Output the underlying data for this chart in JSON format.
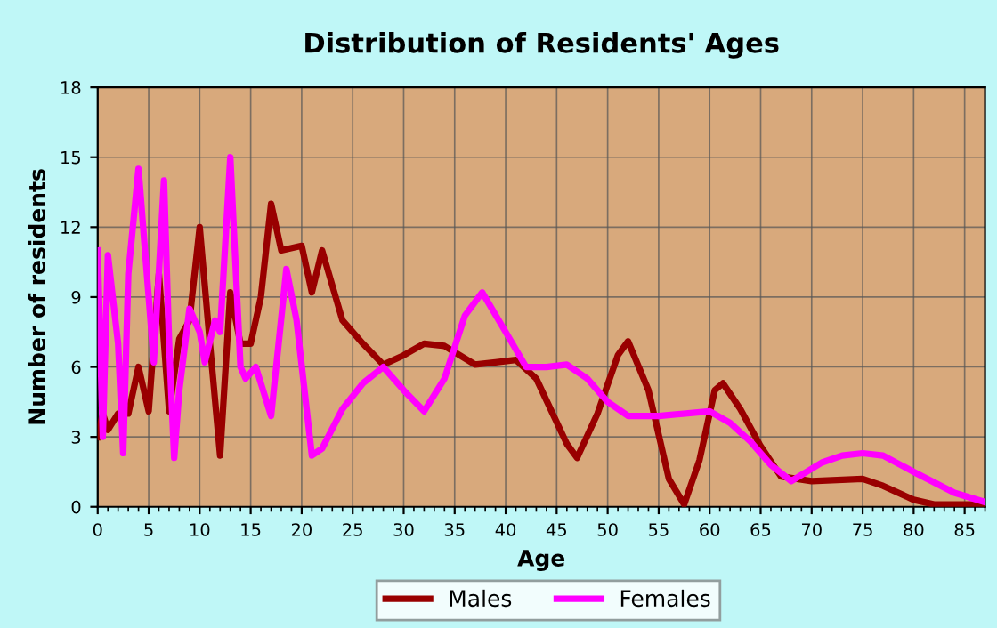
{
  "chart_data": {
    "type": "line",
    "title": "Distribution of Residents' Ages",
    "xlabel": "Age",
    "ylabel": "Number of residents",
    "xlim": [
      0,
      87
    ],
    "ylim": [
      0,
      18
    ],
    "xticks": [
      0,
      5,
      10,
      15,
      20,
      25,
      30,
      35,
      40,
      45,
      50,
      55,
      60,
      65,
      70,
      75,
      80,
      85
    ],
    "yticks": [
      0,
      3,
      6,
      9,
      12,
      15,
      18
    ],
    "grid": true,
    "legend": "bottom",
    "marker": "none",
    "line_style": "solid",
    "series": [
      {
        "name": "Males",
        "color": "#990000",
        "x": [
          0,
          0.5,
          1,
          2,
          3,
          4,
          5,
          6,
          7,
          8,
          9,
          10,
          11,
          12,
          13,
          14,
          15,
          16,
          17,
          18,
          20,
          21,
          22,
          24,
          26,
          28,
          30,
          32,
          34,
          37,
          39,
          41,
          43,
          46,
          47,
          49,
          51,
          52,
          54,
          56,
          57.5,
          59,
          60.5,
          61.3,
          63,
          65,
          67,
          70,
          75,
          77,
          80,
          82,
          87
        ],
        "values": [
          3,
          4,
          3.3,
          4,
          4,
          6,
          4.1,
          10,
          4.1,
          7.2,
          8,
          12,
          7,
          2.2,
          9.2,
          7,
          7,
          9,
          13,
          11,
          11.2,
          9.2,
          11,
          8,
          7,
          6.1,
          6.5,
          7,
          6.9,
          6.1,
          6.2,
          6.3,
          5.5,
          2.7,
          2.1,
          4,
          6.5,
          7.1,
          5,
          1.2,
          0.1,
          2,
          5,
          5.3,
          4.2,
          2.6,
          1.3,
          1.1,
          1.2,
          0.9,
          0.3,
          0.1,
          0.1
        ]
      },
      {
        "name": "Females",
        "color": "#ff00ff",
        "x": [
          0,
          0.5,
          1,
          2,
          2.5,
          3,
          4,
          5,
          5.5,
          6.5,
          7,
          7.5,
          8,
          9,
          10,
          10.5,
          11.5,
          12,
          13,
          14,
          14.5,
          15.5,
          17,
          18.5,
          19.5,
          21,
          22,
          24,
          26,
          28,
          30,
          32,
          34,
          36,
          37.7,
          40,
          42,
          44,
          46,
          48,
          50,
          52,
          55,
          60,
          62,
          64,
          66,
          68,
          71,
          73,
          75,
          77,
          80,
          84,
          87
        ],
        "values": [
          11,
          3,
          10.8,
          7,
          2.3,
          10,
          14.5,
          9,
          6.2,
          14,
          7,
          2.1,
          5,
          8.5,
          7.5,
          6.2,
          8,
          7.5,
          15,
          6,
          5.5,
          6,
          3.9,
          10.2,
          8,
          2.2,
          2.5,
          4.2,
          5.3,
          6,
          5,
          4.1,
          5.5,
          8.2,
          9.2,
          7.5,
          6,
          6,
          6.1,
          5.5,
          4.5,
          3.9,
          3.9,
          4.1,
          3.6,
          2.8,
          1.8,
          1.1,
          1.9,
          2.2,
          2.3,
          2.2,
          1.5,
          0.6,
          0.2
        ]
      }
    ]
  }
}
